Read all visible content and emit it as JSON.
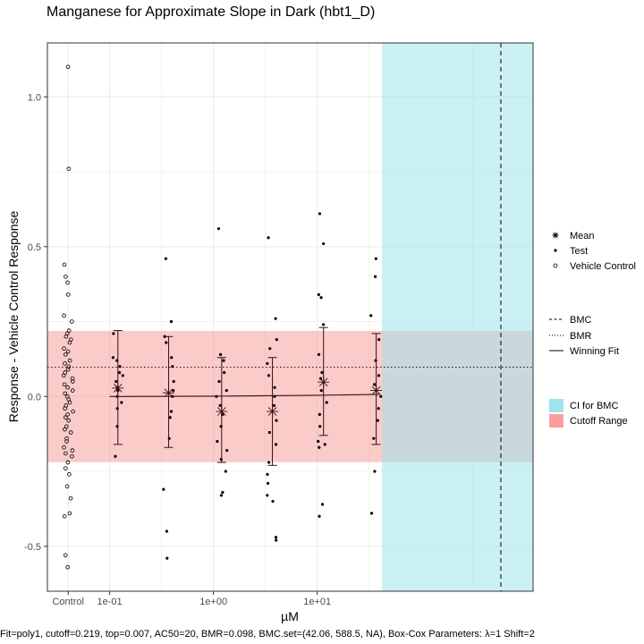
{
  "chart_data": {
    "type": "scatter",
    "title": "Manganese for Approximate Slope in Dark (hbt1_D)",
    "xlabel": "µM",
    "ylabel": "Response - Vehicle Control Response",
    "caption": "Fit=poly1, cutoff=0.219, top=0.007, AC50=20, BMR=0.098, BMC.set=(42.06, 588.5, NA), Box-Cox Parameters: λ=1 Shift=2",
    "x_scale": "log10",
    "xlim_log10": [
      -1.6,
      3.08
    ],
    "ylim": [
      -0.65,
      1.18
    ],
    "grid": true,
    "x_ticks": [
      {
        "label": "Control",
        "log10": -1.4
      },
      {
        "label": "1e-01",
        "log10": -1.0
      },
      {
        "label": "1e+00",
        "log10": 0.0
      },
      {
        "label": "1e+01",
        "log10": 1.0
      }
    ],
    "y_ticks": [
      {
        "label": "-0.5",
        "value": -0.5
      },
      {
        "label": "0.0",
        "value": 0.0
      },
      {
        "label": "0.5",
        "value": 0.5
      },
      {
        "label": "1.0",
        "value": 1.0
      }
    ],
    "cutoff": 0.219,
    "bmr": 0.098,
    "bmc": 588.5,
    "bmc_ci": [
      42.06,
      1200
    ],
    "fit": {
      "model": "poly1",
      "x_log10": [
        -1.0,
        0.0,
        1.0,
        1.6
      ],
      "y": [
        0.0,
        0.001,
        0.004,
        0.007
      ]
    },
    "groups": [
      {
        "conc": 0.12,
        "mean": 0.028,
        "lower": -0.16,
        "upper": 0.22
      },
      {
        "conc": 0.37,
        "mean": 0.012,
        "lower": -0.17,
        "upper": 0.2
      },
      {
        "conc": 1.2,
        "mean": -0.05,
        "lower": -0.22,
        "upper": 0.13
      },
      {
        "conc": 3.7,
        "mean": -0.05,
        "lower": -0.23,
        "upper": 0.13
      },
      {
        "conc": 11.5,
        "mean": 0.048,
        "lower": -0.13,
        "upper": 0.23
      },
      {
        "conc": 37,
        "mean": 0.02,
        "lower": -0.16,
        "upper": 0.21
      }
    ],
    "vehicle_control": [
      1.1,
      0.76,
      0.44,
      0.4,
      0.38,
      0.34,
      0.27,
      0.25,
      0.22,
      0.21,
      0.2,
      0.19,
      0.18,
      0.16,
      0.15,
      0.14,
      0.12,
      0.11,
      0.1,
      0.09,
      0.08,
      0.07,
      0.06,
      0.05,
      0.04,
      0.03,
      0.02,
      0.01,
      0.0,
      -0.01,
      -0.02,
      -0.03,
      -0.04,
      -0.05,
      -0.06,
      -0.07,
      -0.08,
      -0.1,
      -0.11,
      -0.12,
      -0.14,
      -0.15,
      -0.17,
      -0.18,
      -0.19,
      -0.2,
      -0.22,
      -0.24,
      -0.26,
      -0.3,
      -0.34,
      -0.39,
      -0.4,
      -0.53,
      -0.57
    ],
    "test": [
      {
        "conc": 0.12,
        "values": [
          0.21,
          0.13,
          0.12,
          0.1,
          0.08,
          0.07,
          0.05,
          0.03,
          0.02,
          0.0,
          -0.02,
          -0.04,
          -0.1,
          -0.2
        ]
      },
      {
        "conc": 0.37,
        "values": [
          0.46,
          0.25,
          0.2,
          0.18,
          0.13,
          0.1,
          0.05,
          0.02,
          0.0,
          -0.05,
          -0.07,
          -0.14,
          -0.31,
          -0.45,
          -0.54
        ]
      },
      {
        "conc": 1.2,
        "values": [
          0.56,
          0.14,
          0.12,
          0.08,
          0.05,
          0.02,
          0.0,
          -0.03,
          -0.06,
          -0.1,
          -0.15,
          -0.18,
          -0.21,
          -0.25,
          -0.32,
          -0.33
        ]
      },
      {
        "conc": 3.7,
        "values": [
          0.53,
          0.26,
          0.19,
          0.16,
          0.11,
          0.07,
          0.03,
          0.0,
          -0.03,
          -0.08,
          -0.12,
          -0.16,
          -0.22,
          -0.26,
          -0.29,
          -0.33,
          -0.35,
          -0.47,
          -0.48
        ]
      },
      {
        "conc": 11.5,
        "values": [
          0.61,
          0.51,
          0.34,
          0.33,
          0.24,
          0.14,
          0.08,
          0.06,
          0.02,
          -0.02,
          -0.06,
          -0.1,
          -0.15,
          -0.16,
          -0.17,
          -0.36,
          -0.4
        ]
      },
      {
        "conc": 37,
        "values": [
          0.46,
          0.4,
          0.27,
          0.19,
          0.12,
          0.07,
          0.04,
          0.0,
          -0.04,
          -0.08,
          -0.14,
          -0.25,
          -0.39
        ]
      }
    ],
    "legend_shapes": {
      "title": "",
      "items": [
        {
          "label": "Mean",
          "symbol": "asterisk"
        },
        {
          "label": "Test",
          "symbol": "dot"
        },
        {
          "label": "Vehicle Control",
          "symbol": "circle"
        }
      ]
    },
    "legend_lines": {
      "items": [
        {
          "label": "BMC",
          "style": "dashed"
        },
        {
          "label": "BMR",
          "style": "dotted"
        },
        {
          "label": "Winning Fit",
          "style": "solid"
        }
      ]
    },
    "legend_fills": {
      "items": [
        {
          "label": "CI for BMC",
          "color": "#9ee4ea"
        },
        {
          "label": "Cutoff Range",
          "color": "#f7a09f"
        }
      ]
    }
  },
  "colors": {
    "ci_fill": "#9ee4ea",
    "cutoff_fill": "#f7a09f",
    "grid": "#ebebeb",
    "panel_border": "#333333",
    "ink": "#000000",
    "fit_line": "#3a0c0c"
  }
}
